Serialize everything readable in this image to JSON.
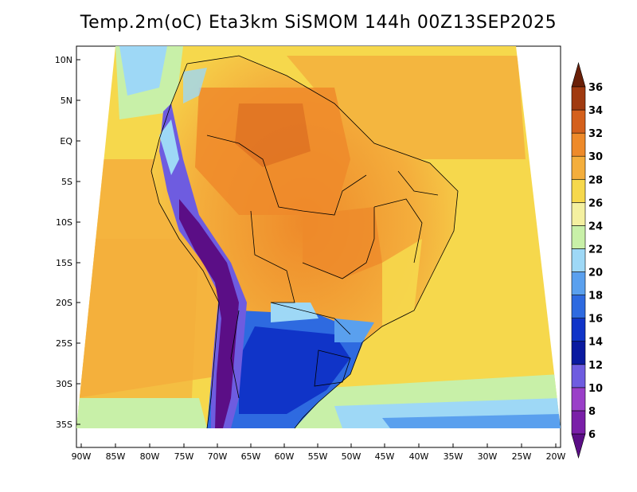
{
  "title": "Temp.2m(oC) Eta3km SiSMOM 144h 00Z13SEP2025",
  "latitude_ticks": [
    "10N",
    "5N",
    "EQ",
    "5S",
    "10S",
    "15S",
    "20S",
    "25S",
    "30S",
    "35S"
  ],
  "longitude_ticks": [
    "90W",
    "85W",
    "80W",
    "75W",
    "70W",
    "65W",
    "60W",
    "55W",
    "50W",
    "45W",
    "40W",
    "35W",
    "30W",
    "25W",
    "20W"
  ],
  "colorbar": {
    "labels": [
      "6",
      "8",
      "10",
      "12",
      "14",
      "16",
      "18",
      "20",
      "22",
      "24",
      "26",
      "28",
      "30",
      "32",
      "34",
      "36"
    ],
    "colors": [
      "#5b0e86",
      "#7a1fa8",
      "#9a3fc8",
      "#6e5ce0",
      "#0a1aa0",
      "#1034c8",
      "#2e6ae0",
      "#5aa0ee",
      "#9ed8f6",
      "#c8f0a8",
      "#f4f0a0",
      "#f6d84c",
      "#f4ae3c",
      "#ee8a2a",
      "#d4601c",
      "#a03a10",
      "#6a2008"
    ]
  }
}
